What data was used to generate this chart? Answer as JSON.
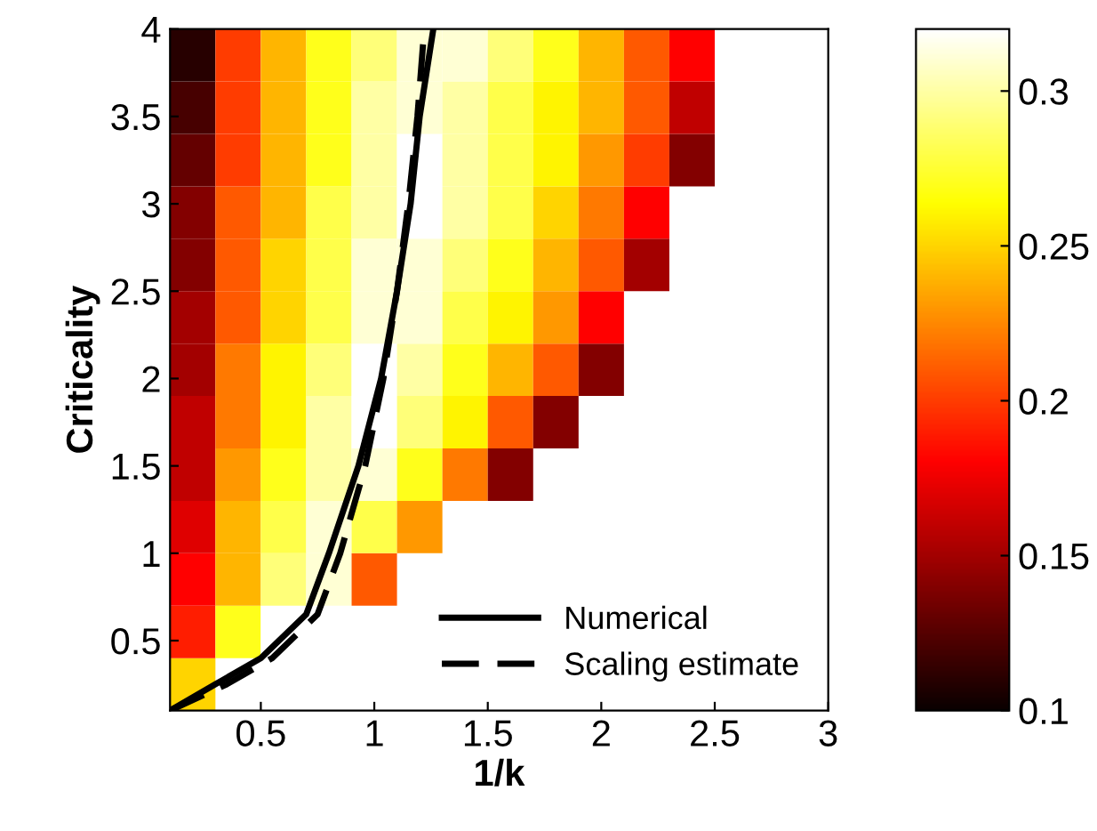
{
  "chart_data": {
    "type": "heatmap",
    "xlabel": "1/k",
    "ylabel": "Criticality",
    "x": [
      0.2,
      0.4,
      0.6,
      0.8,
      1.0,
      1.2,
      1.4,
      1.6,
      1.8,
      2.0,
      2.2,
      2.4,
      2.6,
      2.8
    ],
    "y": [
      0.25,
      0.55,
      0.85,
      1.15,
      1.45,
      1.75,
      2.05,
      2.35,
      2.65,
      2.95,
      3.25,
      3.55,
      3.85
    ],
    "cells": [
      [
        0.25,
        null,
        null,
        null,
        null,
        null,
        null,
        null,
        null,
        null,
        null,
        null,
        null,
        null
      ],
      [
        0.19,
        0.27,
        0.32,
        null,
        null,
        null,
        null,
        null,
        null,
        null,
        null,
        null,
        null,
        null
      ],
      [
        0.18,
        0.24,
        0.29,
        0.31,
        0.21,
        null,
        null,
        null,
        null,
        null,
        null,
        null,
        null,
        null
      ],
      [
        0.17,
        0.24,
        0.28,
        0.31,
        0.28,
        0.23,
        null,
        null,
        null,
        null,
        null,
        null,
        null,
        null
      ],
      [
        0.16,
        0.23,
        0.27,
        0.3,
        0.31,
        0.27,
        0.22,
        0.14,
        null,
        null,
        null,
        null,
        null,
        null
      ],
      [
        0.16,
        0.22,
        0.26,
        0.3,
        0.32,
        0.29,
        0.26,
        0.21,
        0.14,
        null,
        null,
        null,
        null,
        null
      ],
      [
        0.15,
        0.22,
        0.26,
        0.29,
        0.32,
        0.3,
        0.27,
        0.24,
        0.21,
        0.14,
        null,
        null,
        null,
        null
      ],
      [
        0.15,
        0.21,
        0.25,
        0.28,
        0.31,
        0.31,
        0.28,
        0.26,
        0.23,
        0.18,
        null,
        null,
        null,
        null
      ],
      [
        0.14,
        0.21,
        0.25,
        0.28,
        0.31,
        0.31,
        0.29,
        0.27,
        0.24,
        0.21,
        0.15,
        null,
        null,
        null
      ],
      [
        0.14,
        0.21,
        0.24,
        0.28,
        0.3,
        0.32,
        0.3,
        0.28,
        0.25,
        0.22,
        0.18,
        null,
        null,
        null
      ],
      [
        0.13,
        0.2,
        0.24,
        0.27,
        0.3,
        0.32,
        0.3,
        0.28,
        0.26,
        0.23,
        0.2,
        0.14,
        null,
        null
      ],
      [
        0.12,
        0.2,
        0.24,
        0.27,
        0.3,
        0.31,
        0.3,
        0.28,
        0.26,
        0.24,
        0.21,
        0.16,
        null,
        null
      ],
      [
        0.11,
        0.2,
        0.24,
        0.27,
        0.29,
        0.31,
        0.31,
        0.29,
        0.27,
        0.24,
        0.21,
        0.18,
        null,
        null
      ]
    ],
    "clim": [
      0.1,
      0.32
    ],
    "cticks": [
      0.1,
      0.15,
      0.2,
      0.25,
      0.3
    ],
    "series": [
      {
        "name": "Numerical",
        "type": "line",
        "color": "#000000",
        "line_style": "solid",
        "x": [
          0.1,
          0.3,
          0.5,
          0.7,
          0.8,
          0.93,
          1.03,
          1.1,
          1.16,
          1.2,
          1.26
        ],
        "values": [
          0.1,
          0.25,
          0.4,
          0.65,
          1.0,
          1.5,
          2.0,
          2.5,
          3.0,
          3.5,
          4.0
        ]
      },
      {
        "name": "Scaling estimate",
        "type": "line",
        "color": "#000000",
        "line_style": "dashed",
        "x": [
          0.1,
          0.35,
          0.55,
          0.75,
          0.85,
          0.96,
          1.04,
          1.1,
          1.15,
          1.19,
          1.22
        ],
        "values": [
          0.1,
          0.25,
          0.4,
          0.65,
          1.0,
          1.5,
          2.0,
          2.5,
          3.0,
          3.5,
          4.0
        ]
      }
    ],
    "xlim": [
      0.1,
      3
    ],
    "xticks": [
      0.5,
      1,
      1.5,
      2,
      2.5,
      3
    ],
    "ylim": [
      0.1,
      4
    ],
    "yticks": [
      0.5,
      1,
      1.5,
      2,
      2.5,
      3,
      3.5,
      4
    ],
    "grid": false,
    "legend": "bottom right"
  }
}
